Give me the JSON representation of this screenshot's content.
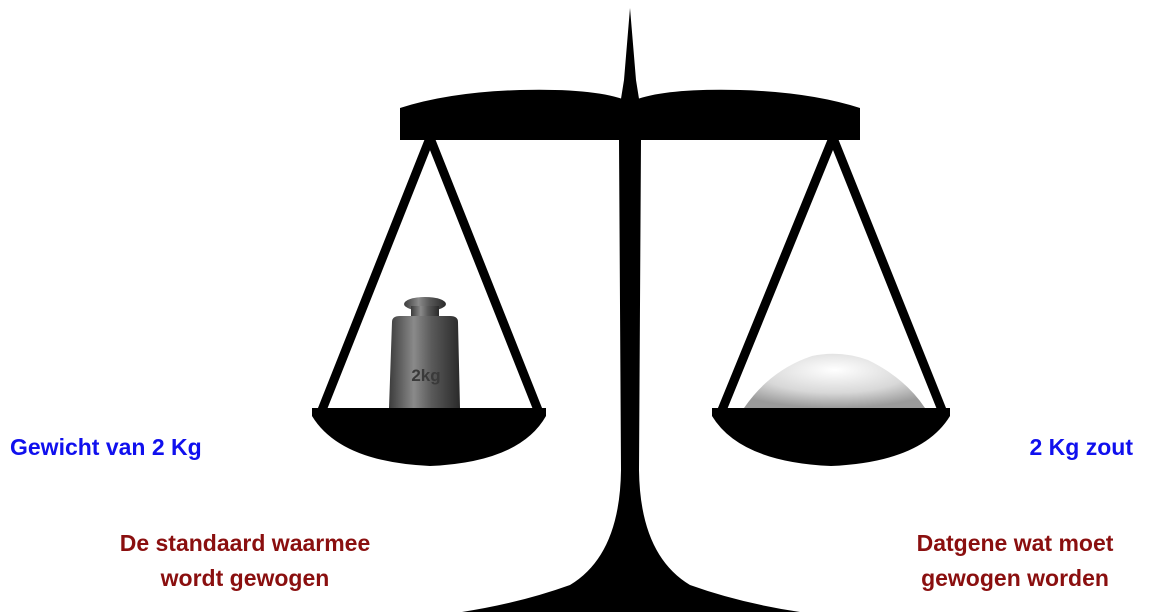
{
  "left": {
    "label": "Gewicht van 2 Kg",
    "description": [
      "De standaard waarmee",
      "wordt gewogen"
    ],
    "weight_marking": "2kg"
  },
  "right": {
    "label": "2 Kg zout",
    "description": [
      "Datgene wat moet",
      "gewogen worden"
    ]
  }
}
